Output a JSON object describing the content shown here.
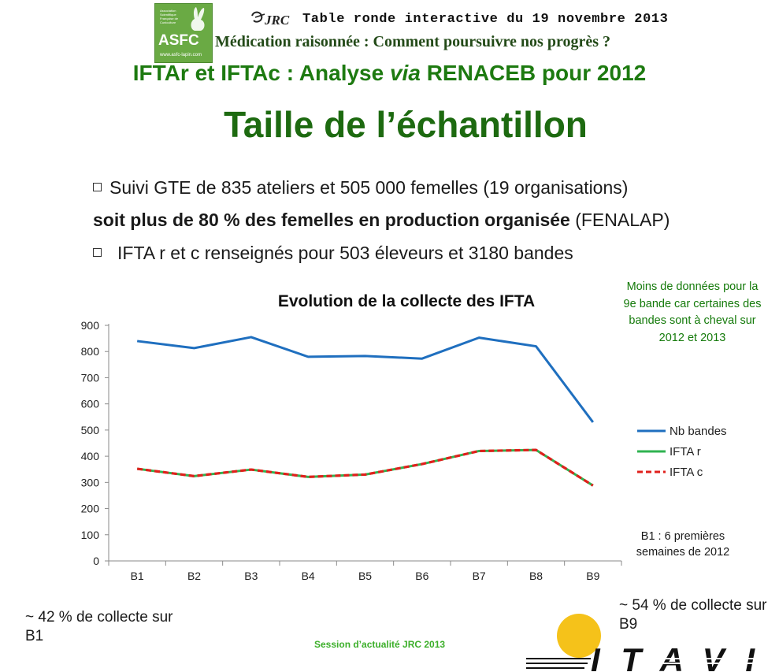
{
  "header": {
    "asfc_logo": "ASFC",
    "asfc_url": "www.asfc-lapin.com",
    "asfc_small": "Association Scientifique Française de Cuniculture",
    "jrc_logo": "JRC",
    "title": "Table ronde interactive du 19 novembre 2013",
    "subtitle": "Médication raisonnée : Comment poursuivre nos progrès ?"
  },
  "headline": {
    "before": "IFTAr et IFTAc : Analyse ",
    "italic": "via",
    "after": " RENACEB pour 2012"
  },
  "page_title": "Taille de l’échantillon",
  "bullets": {
    "line1": "Suivi GTE de 835 ateliers et 505 000 femelles (19 organisations)",
    "line2_bold": "soit plus de 80 % des femelles en production organisée",
    "line2_rest": " (FENALAP)",
    "line3": "IFTA r et c renseignés pour 503 éleveurs et 3180 bandes"
  },
  "chart_data": {
    "type": "line",
    "title": "Evolution de la collecte des IFTA",
    "categories": [
      "B1",
      "B2",
      "B3",
      "B4",
      "B5",
      "B6",
      "B7",
      "B8",
      "B9"
    ],
    "ylim": [
      0,
      900
    ],
    "yticks": [
      0,
      100,
      200,
      300,
      400,
      500,
      600,
      700,
      800,
      900
    ],
    "legend_position": "right",
    "series": [
      {
        "name": "Nb bandes",
        "color": "#1f6fbf",
        "style": "solid",
        "values": [
          840,
          813,
          855,
          780,
          783,
          773,
          853,
          820,
          530
        ]
      },
      {
        "name": "IFTA r",
        "color": "#2fb350",
        "style": "solid",
        "values": [
          352,
          324,
          349,
          321,
          330,
          370,
          420,
          424,
          288
        ]
      },
      {
        "name": "IFTA c",
        "color": "#e0201c",
        "style": "dashed",
        "values": [
          352,
          324,
          349,
          321,
          330,
          370,
          420,
          424,
          288
        ]
      }
    ]
  },
  "notes": {
    "top": "Moins de données pour la 9e bande car certaines des bandes sont à cheval sur 2012 et 2013",
    "b1": "B1 : 6 premières semaines de 2012",
    "left": "~ 42 % de collecte sur B1",
    "right": "~ 54 % de collecte sur B9"
  },
  "footer": "Session d’actualité JRC 2013",
  "itavi_logo": "ITAVI",
  "colors": {
    "title_green": "#1d6a10",
    "note_green": "#147a0a",
    "footer_green": "#3caf2a",
    "sun": "#f5c21a"
  }
}
